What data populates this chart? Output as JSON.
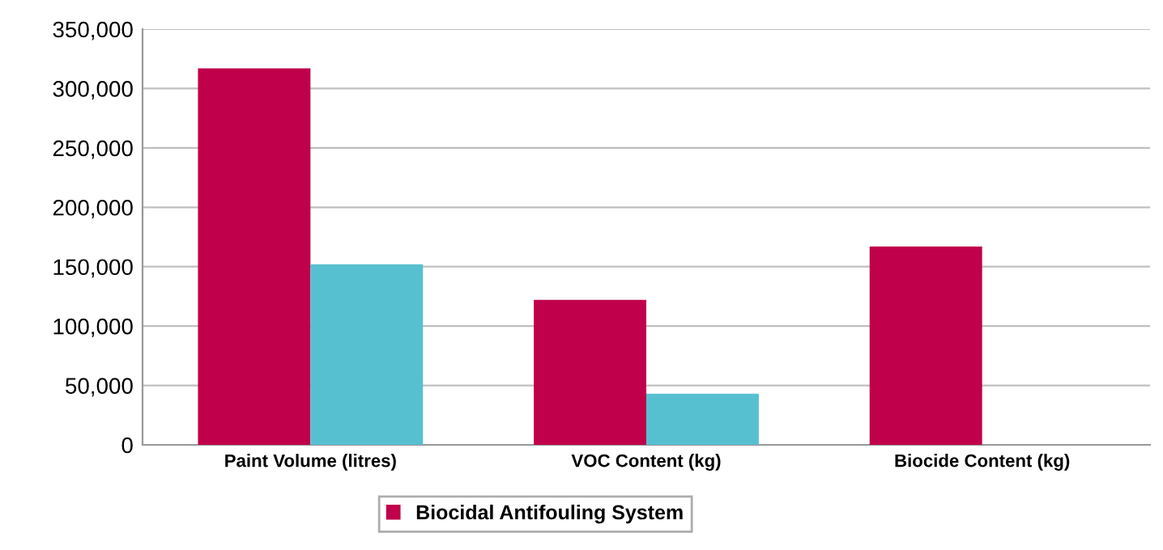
{
  "chart_data": {
    "type": "bar",
    "categories": [
      "Paint Volume (litres)",
      "VOC Content (kg)",
      "Biocide Content (kg)"
    ],
    "series": [
      {
        "name": "Biocidal Antifouling System",
        "color": "#c0004b",
        "values": [
          317000,
          122000,
          167000
        ]
      },
      {
        "color": "#57c0d0",
        "values": [
          152000,
          43000,
          0
        ]
      }
    ],
    "ylim": [
      0,
      350000
    ],
    "yticks": [
      {
        "value": 0,
        "label": "0"
      },
      {
        "value": 50000,
        "label": "50,000"
      },
      {
        "value": 100000,
        "label": "100,000"
      },
      {
        "value": 150000,
        "label": "150,000"
      },
      {
        "value": 200000,
        "label": "200,000"
      },
      {
        "value": 250000,
        "label": "250,000"
      },
      {
        "value": 300000,
        "label": "300,000"
      },
      {
        "value": 350000,
        "label": "350,000"
      }
    ],
    "grid": "y",
    "legend": "bottom"
  }
}
